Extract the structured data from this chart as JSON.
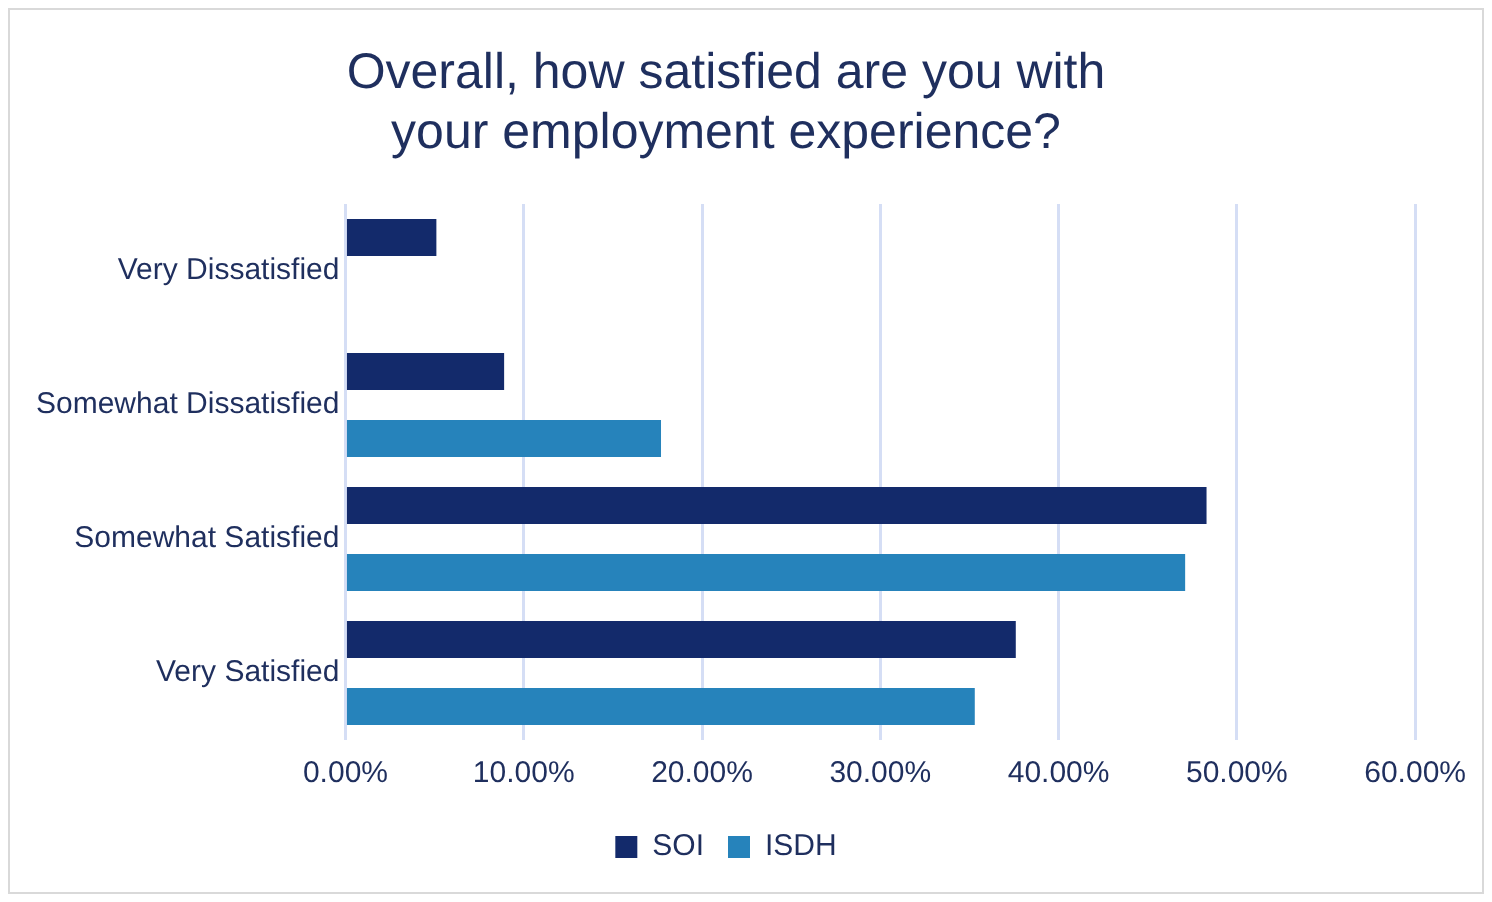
{
  "chart_data": {
    "type": "bar",
    "orientation": "horizontal",
    "title": "Overall, how satisfied are you with your employment experience?",
    "categories": [
      "Very Dissatisfied",
      "Somewhat Dissatisfied",
      "Somewhat Satisfied",
      "Very Satisfied"
    ],
    "series": [
      {
        "name": "SOI",
        "color": "#132a6b",
        "values": [
          5.1,
          8.9,
          48.3,
          37.6
        ]
      },
      {
        "name": "ISDH",
        "color": "#2683bb",
        "values": [
          null,
          17.7,
          47.1,
          35.3
        ]
      }
    ],
    "xlim": [
      0,
      60
    ],
    "xticks": [
      {
        "value": 0,
        "label": "0.00%"
      },
      {
        "value": 10,
        "label": "10.00%"
      },
      {
        "value": 20,
        "label": "20.00%"
      },
      {
        "value": 30,
        "label": "30.00%"
      },
      {
        "value": 40,
        "label": "40.00%"
      },
      {
        "value": 50,
        "label": "50.00%"
      },
      {
        "value": 60,
        "label": "60.00%"
      }
    ],
    "grid": "x",
    "legend": "bottom"
  }
}
